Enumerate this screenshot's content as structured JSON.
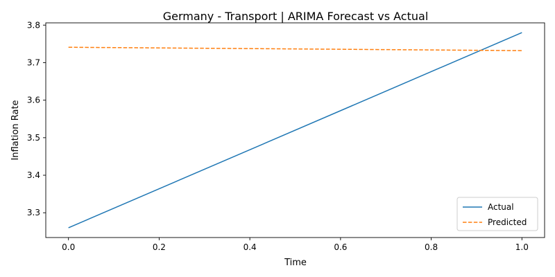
{
  "chart_data": {
    "type": "line",
    "title": "Germany - Transport | ARIMA Forecast vs Actual",
    "xlabel": "Time",
    "ylabel": "Inflation Rate",
    "xlim": [
      -0.05,
      1.05
    ],
    "ylim": [
      3.234,
      3.806
    ],
    "xticks": [
      0.0,
      0.2,
      0.4,
      0.6,
      0.8,
      1.0
    ],
    "xtick_labels": [
      "0.0",
      "0.2",
      "0.4",
      "0.6",
      "0.8",
      "1.0"
    ],
    "yticks": [
      3.3,
      3.4,
      3.5,
      3.6,
      3.7,
      3.8
    ],
    "ytick_labels": [
      "3.3",
      "3.4",
      "3.5",
      "3.6",
      "3.7",
      "3.8"
    ],
    "grid": false,
    "legend_position": "lower-right",
    "series": [
      {
        "name": "Actual",
        "x": [
          0,
          1
        ],
        "values": [
          3.26,
          3.78
        ],
        "color": "#1f77b4",
        "style": "solid"
      },
      {
        "name": "Predicted",
        "x": [
          0,
          1
        ],
        "values": [
          3.741,
          3.732
        ],
        "color": "#ff7f0e",
        "style": "dashed"
      }
    ]
  }
}
